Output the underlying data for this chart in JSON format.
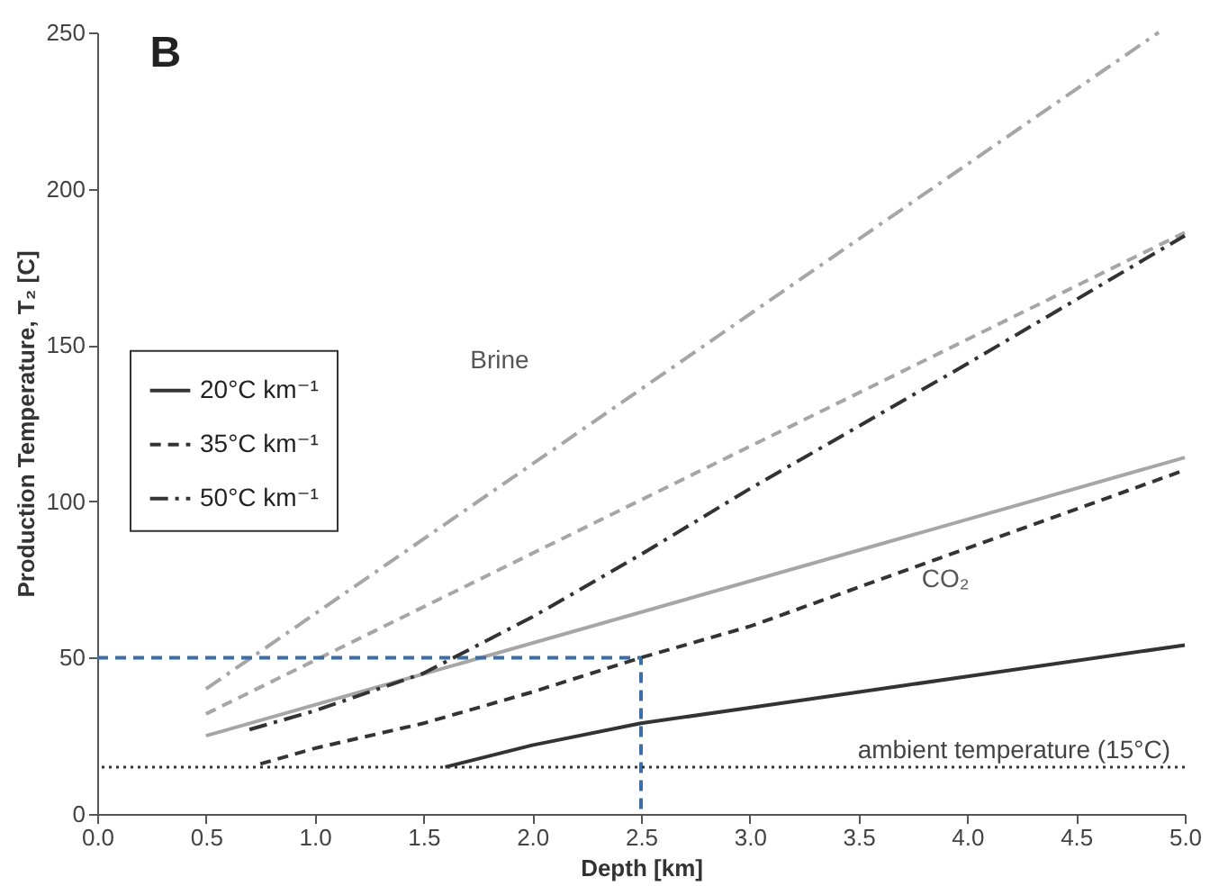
{
  "chart_data": {
    "type": "line",
    "title": "B",
    "xlabel": "Depth [km]",
    "ylabel": "Production Temperature, T₂ [C]",
    "xlim": [
      0,
      5
    ],
    "ylim": [
      0,
      250
    ],
    "xticks": [
      {
        "value": 0,
        "label": "0.0"
      },
      {
        "value": 0.5,
        "label": "0.5"
      },
      {
        "value": 1,
        "label": "1.0"
      },
      {
        "value": 1.5,
        "label": "1.5"
      },
      {
        "value": 2,
        "label": "2.0"
      },
      {
        "value": 2.5,
        "label": "2.5"
      },
      {
        "value": 3,
        "label": "3.0"
      },
      {
        "value": 3.5,
        "label": "3.5"
      },
      {
        "value": 4,
        "label": "4.0"
      },
      {
        "value": 4.5,
        "label": "4.5"
      },
      {
        "value": 5,
        "label": "5.0"
      }
    ],
    "yticks": [
      0,
      50,
      100,
      150,
      200,
      250
    ],
    "grid": false,
    "legend": "left",
    "marker": "none",
    "series": [
      {
        "name": "20°C km⁻¹",
        "color": "#333333",
        "line_style": "solid",
        "x": [
          1.6,
          2.0,
          2.5,
          3.0,
          4.0,
          5.0
        ],
        "values": [
          15,
          22,
          29,
          34,
          44,
          54
        ]
      },
      {
        "name": "35°C km⁻¹",
        "color": "#333333",
        "line_style": "dashed",
        "x": [
          0.75,
          1.0,
          1.5,
          2.0,
          2.5,
          3.0,
          4.0,
          5.0
        ],
        "values": [
          16,
          21,
          29,
          39,
          50,
          60,
          85,
          110
        ]
      },
      {
        "name": "50°C km⁻¹",
        "color": "#333333",
        "line_style": "dashdot",
        "x": [
          0.7,
          1.0,
          1.5,
          2.0,
          2.5,
          3.0,
          4.0,
          5.0
        ],
        "values": [
          27,
          33,
          45,
          63,
          83,
          104,
          144,
          185
        ]
      },
      {
        "color": "#a6a6a6",
        "line_style": "solid",
        "x": [
          0.5,
          5.0
        ],
        "values": [
          25,
          114
        ]
      },
      {
        "color": "#a6a6a6",
        "line_style": "dashed",
        "x": [
          0.5,
          5.0
        ],
        "values": [
          32,
          186
        ]
      },
      {
        "color": "#a6a6a6",
        "line_style": "dashdot",
        "x": [
          0.5,
          4.88
        ],
        "values": [
          40,
          250
        ]
      },
      {
        "color": "#3a6ea5",
        "line_style": "dashed",
        "x": [
          0,
          2.5,
          2.5
        ],
        "values": [
          50,
          50,
          0
        ]
      }
    ],
    "ref_lines": [
      {
        "axis": "y",
        "value": 15,
        "label": "ambient temperature (15°C)",
        "color": "#333333",
        "line_style": "dotted"
      }
    ],
    "annotations": [
      "Brine",
      "CO₂"
    ]
  }
}
